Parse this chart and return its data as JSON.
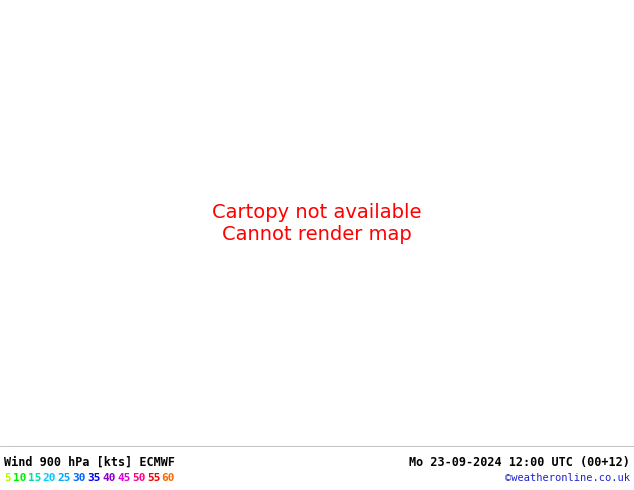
{
  "title_left": "Wind 900 hPa [kts] ECMWF",
  "title_right": "Mo 23-09-2024 12:00 UTC (00+12)",
  "credit": "©weatheronline.co.uk",
  "colorbar_values": [
    5,
    10,
    15,
    20,
    25,
    30,
    35,
    40,
    45,
    50,
    55,
    60
  ],
  "colorbar_colors": [
    "#aaff00",
    "#00ee00",
    "#00ddaa",
    "#00ccff",
    "#00aaff",
    "#0066ff",
    "#0000ee",
    "#8800cc",
    "#dd00dd",
    "#ff0088",
    "#ee0000",
    "#ff6600"
  ],
  "bg_color": "#ffffff",
  "ocean_color": "#ebebeb",
  "land_color": "#b8f0b0",
  "coast_color": "#333333",
  "figsize": [
    6.34,
    4.9
  ],
  "dpi": 100,
  "extent": [
    2.0,
    35.0,
    54.0,
    72.0
  ],
  "wind_seed": 42,
  "info_bar_color": "#d8d8d8"
}
